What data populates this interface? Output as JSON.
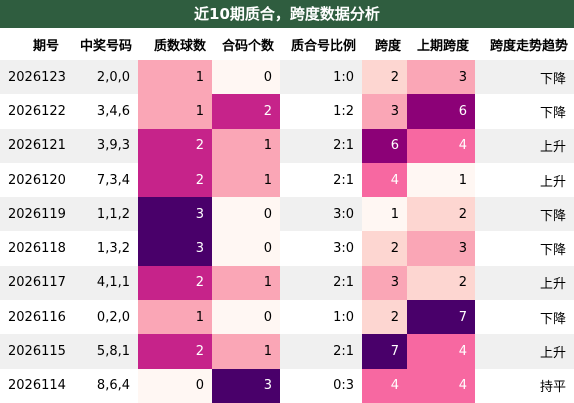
{
  "title": "近10期质合，跨度数据分析",
  "table": {
    "header": [
      "期号",
      "中奖号码",
      "质数球数",
      "合码个数",
      "质合号比例",
      "跨度",
      "上期跨度",
      "跨度走势趋势"
    ],
    "heat_columns": [
      2,
      3,
      5,
      6
    ],
    "rows": [
      [
        "2026123",
        "2,0,0",
        1,
        0,
        "1:0",
        2,
        3,
        "下降"
      ],
      [
        "2026122",
        "3,4,6",
        1,
        2,
        "1:2",
        3,
        6,
        "下降"
      ],
      [
        "2026121",
        "3,9,3",
        2,
        1,
        "2:1",
        6,
        4,
        "上升"
      ],
      [
        "2026120",
        "7,3,4",
        2,
        1,
        "2:1",
        4,
        1,
        "上升"
      ],
      [
        "2026119",
        "1,1,2",
        3,
        0,
        "3:0",
        1,
        2,
        "下降"
      ],
      [
        "2026118",
        "1,3,2",
        3,
        0,
        "3:0",
        2,
        3,
        "下降"
      ],
      [
        "2026117",
        "4,1,1",
        2,
        1,
        "2:1",
        3,
        2,
        "上升"
      ],
      [
        "2026116",
        "0,2,0",
        1,
        0,
        "1:0",
        2,
        7,
        "下降"
      ],
      [
        "2026115",
        "5,8,1",
        2,
        1,
        "2:1",
        7,
        4,
        "上升"
      ],
      [
        "2026114",
        "8,6,4",
        0,
        3,
        "0:3",
        4,
        4,
        "持平"
      ]
    ]
  }
}
